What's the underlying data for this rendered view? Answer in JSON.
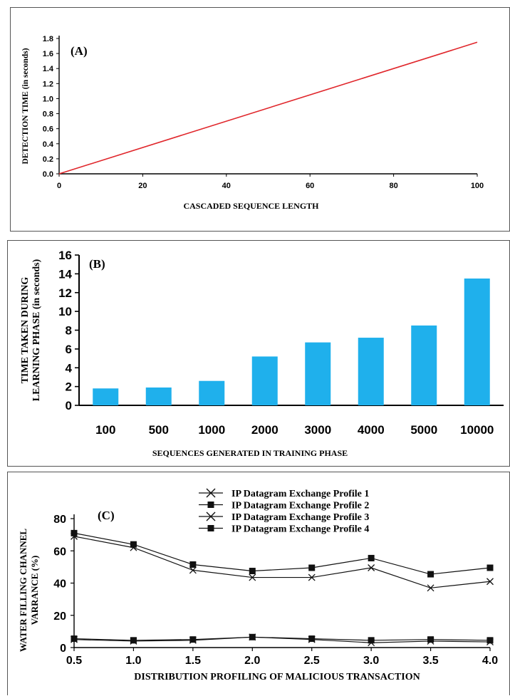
{
  "chart_data": [
    {
      "type": "line",
      "panel_label": "(A)",
      "xlabel": "CASCADED SEQUENCE LENGTH",
      "ylabel": "DETECTION TIME (in seconds)",
      "xlim": [
        0,
        100
      ],
      "ylim": [
        0,
        1.8
      ],
      "x_ticks": [
        "0",
        "20",
        "40",
        "60",
        "80",
        "100"
      ],
      "y_ticks": [
        "0.0",
        "0.2",
        "0.4",
        "0.6",
        "0.8",
        "1.0",
        "1.2",
        "1.4",
        "1.6",
        "1.8"
      ],
      "series": [
        {
          "x": [
            0,
            100
          ],
          "values": [
            0.0,
            1.75
          ],
          "color": "#e0262b"
        }
      ],
      "grid": false
    },
    {
      "type": "bar",
      "panel_label": "(B)",
      "xlabel": "SEQUENCES GENERATED IN TRAINING PHASE",
      "ylabel_lines": [
        "TIME TAKEN DURING",
        "LEARNING PHASE (in seconds)"
      ],
      "categories": [
        "100",
        "500",
        "1000",
        "2000",
        "3000",
        "4000",
        "5000",
        "10000"
      ],
      "values": [
        1.8,
        1.9,
        2.6,
        5.2,
        6.7,
        7.2,
        8.5,
        13.5
      ],
      "ylim": [
        0,
        16
      ],
      "y_ticks": [
        "0",
        "2",
        "4",
        "6",
        "8",
        "10",
        "12",
        "14",
        "16"
      ],
      "bar_color": "#1fb0ec",
      "grid": false
    },
    {
      "type": "line",
      "panel_label": "(C)",
      "xlabel": "DISTRIBUTION PROFILING OF MALICIOUS TRANSACTION",
      "ylabel_lines": [
        "WATER FILLING CHANNEL",
        "VARRANCE (%)"
      ],
      "x_ticks": [
        "0.5",
        "1.0",
        "1.5",
        "2.0",
        "2.5",
        "3.0",
        "3.5",
        "4.0"
      ],
      "xlim": [
        0.5,
        4.0
      ],
      "ylim": [
        0,
        80
      ],
      "y_ticks": [
        "0",
        "20",
        "40",
        "60",
        "80"
      ],
      "legend_position": "top-right",
      "x": [
        0.5,
        1.0,
        1.5,
        2.0,
        2.5,
        3.0,
        3.5,
        4.0
      ],
      "series": [
        {
          "name": "IP Datagram Exchange Profile 1",
          "marker": "x",
          "values": [
            69,
            62,
            48,
            43.5,
            43.5,
            49.5,
            37,
            41
          ]
        },
        {
          "name": "IP Datagram Exchange Profile 2",
          "marker": "square",
          "values": [
            71,
            64,
            51.5,
            47.5,
            49.5,
            55.5,
            45.5,
            49.5
          ]
        },
        {
          "name": "IP Datagram Exchange Profile 3",
          "marker": "x",
          "values": [
            5,
            4,
            4.5,
            6.5,
            5,
            3,
            4,
            3.5
          ]
        },
        {
          "name": "IP Datagram Exchange Profile 4",
          "marker": "square",
          "values": [
            5.5,
            4.5,
            5,
            6.5,
            5.5,
            4.5,
            5,
            4.5
          ]
        }
      ],
      "grid": false
    }
  ]
}
